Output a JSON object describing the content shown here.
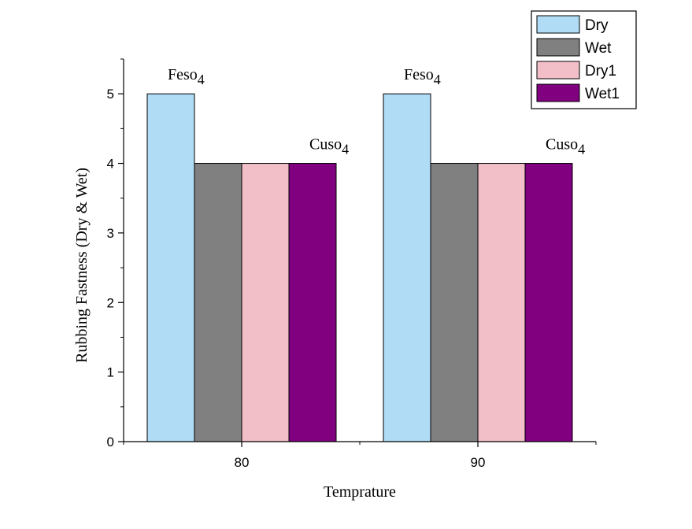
{
  "chart_data": {
    "type": "bar",
    "xlabel": "Temprature",
    "ylabel": "Rubbing Fastness (Dry & Wet)",
    "categories": [
      "80",
      "90"
    ],
    "ylim": [
      0,
      5.5
    ],
    "yticks": [
      "0",
      "1",
      "2",
      "3",
      "4",
      "5"
    ],
    "grid": false,
    "legend_position": "top-right",
    "series": [
      {
        "name": "Dry",
        "values": [
          5,
          5
        ],
        "color": "#B0DDF5"
      },
      {
        "name": "Wet",
        "values": [
          4,
          4
        ],
        "color": "#808080"
      },
      {
        "name": "Dry1",
        "values": [
          4,
          4
        ],
        "color": "#F2BFC8"
      },
      {
        "name": "Wet1",
        "values": [
          4,
          4
        ],
        "color": "#800080"
      }
    ],
    "annotations": [
      {
        "text": "Feso",
        "sub": "4",
        "category": "80",
        "group": "Dry"
      },
      {
        "text": "Cuso",
        "sub": "4",
        "category": "80",
        "group": "Wet1"
      },
      {
        "text": "Feso",
        "sub": "4",
        "category": "90",
        "group": "Dry"
      },
      {
        "text": "Cuso",
        "sub": "4",
        "category": "90",
        "group": "Wet1"
      }
    ]
  }
}
